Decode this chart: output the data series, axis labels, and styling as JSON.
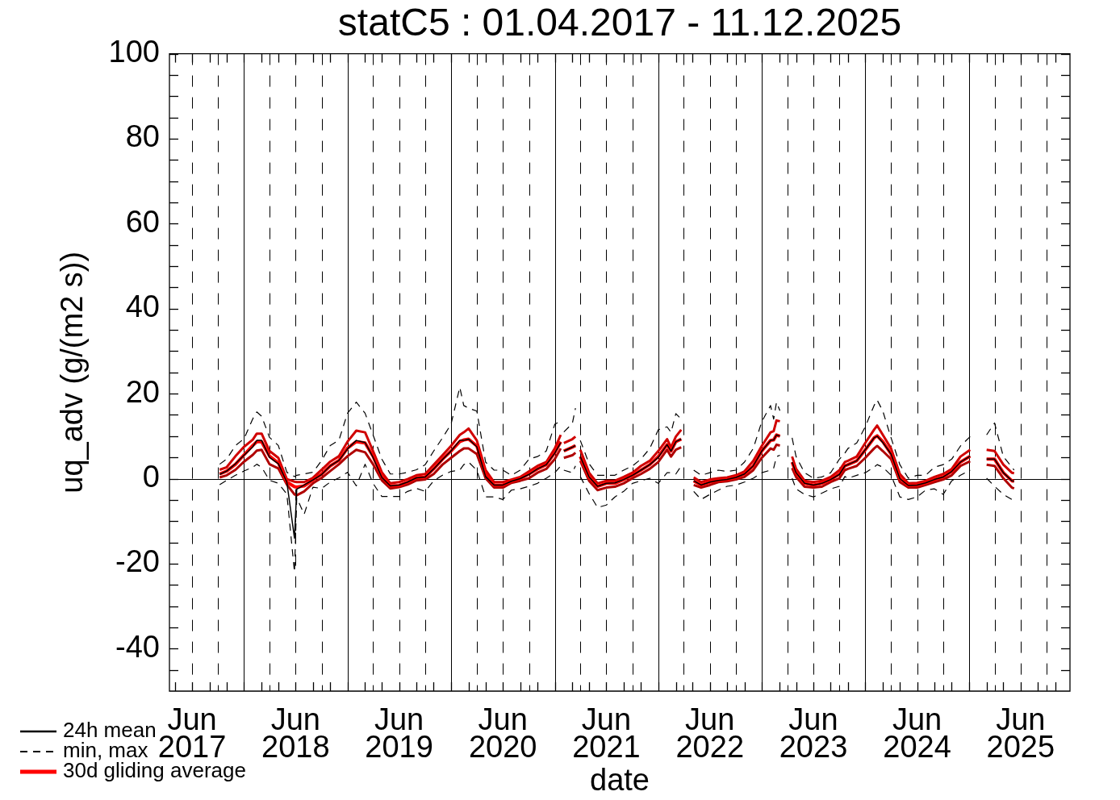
{
  "chart_data": {
    "type": "line",
    "title": "statC5 : 01.04.2017 - 11.12.2025",
    "xlabel": "date",
    "ylabel": "uq_adv (g/(m2 s))",
    "xlim": [
      "2017-03-13",
      "2025-11-22"
    ],
    "ylim": [
      -50,
      100
    ],
    "xticks": [
      {
        "value": "2017-04-01",
        "label": null
      },
      {
        "value": "2017-06-01",
        "label": "Jun\n2017"
      },
      {
        "value": "2017-08-01",
        "label": null
      },
      {
        "value": "2017-10-01",
        "label": null
      },
      {
        "value": "2017-12-01",
        "label": null
      },
      {
        "value": "2018-02-01",
        "label": null
      },
      {
        "value": "2018-04-01",
        "label": null
      },
      {
        "value": "2018-06-01",
        "label": "Jun\n2018"
      },
      {
        "value": "2018-08-01",
        "label": null
      },
      {
        "value": "2018-10-01",
        "label": null
      },
      {
        "value": "2018-12-01",
        "label": null
      },
      {
        "value": "2019-02-01",
        "label": null
      },
      {
        "value": "2019-04-01",
        "label": null
      },
      {
        "value": "2019-06-01",
        "label": "Jun\n2019"
      },
      {
        "value": "2019-08-01",
        "label": null
      },
      {
        "value": "2019-10-01",
        "label": null
      },
      {
        "value": "2019-12-01",
        "label": null
      },
      {
        "value": "2020-02-01",
        "label": null
      },
      {
        "value": "2020-04-01",
        "label": null
      },
      {
        "value": "2020-06-01",
        "label": "Jun\n2020"
      },
      {
        "value": "2020-08-01",
        "label": null
      },
      {
        "value": "2020-10-01",
        "label": null
      },
      {
        "value": "2020-12-01",
        "label": null
      },
      {
        "value": "2021-02-01",
        "label": null
      },
      {
        "value": "2021-04-01",
        "label": null
      },
      {
        "value": "2021-06-01",
        "label": "Jun\n2021"
      },
      {
        "value": "2021-08-01",
        "label": null
      },
      {
        "value": "2021-10-01",
        "label": null
      },
      {
        "value": "2021-12-01",
        "label": null
      },
      {
        "value": "2022-02-01",
        "label": null
      },
      {
        "value": "2022-04-01",
        "label": null
      },
      {
        "value": "2022-06-01",
        "label": "Jun\n2022"
      },
      {
        "value": "2022-08-01",
        "label": null
      },
      {
        "value": "2022-10-01",
        "label": null
      },
      {
        "value": "2022-12-01",
        "label": null
      },
      {
        "value": "2023-02-01",
        "label": null
      },
      {
        "value": "2023-04-01",
        "label": null
      },
      {
        "value": "2023-06-01",
        "label": "Jun\n2023"
      },
      {
        "value": "2023-08-01",
        "label": null
      },
      {
        "value": "2023-10-01",
        "label": null
      },
      {
        "value": "2023-12-01",
        "label": null
      },
      {
        "value": "2024-02-01",
        "label": null
      },
      {
        "value": "2024-04-01",
        "label": null
      },
      {
        "value": "2024-06-01",
        "label": "Jun\n2024"
      },
      {
        "value": "2024-08-01",
        "label": null
      },
      {
        "value": "2024-10-01",
        "label": null
      },
      {
        "value": "2024-12-01",
        "label": null
      },
      {
        "value": "2025-02-01",
        "label": null
      },
      {
        "value": "2025-04-01",
        "label": null
      },
      {
        "value": "2025-06-01",
        "label": "Jun\n2025"
      },
      {
        "value": "2025-08-01",
        "label": null
      },
      {
        "value": "2025-10-01",
        "label": null
      }
    ],
    "yticks": [
      {
        "value": -45,
        "label": null
      },
      -40,
      {
        "value": -35,
        "label": null
      },
      {
        "value": -30,
        "label": null
      },
      {
        "value": -25,
        "label": null
      },
      -20,
      {
        "value": -15,
        "label": null
      },
      {
        "value": -10,
        "label": null
      },
      {
        "value": -5,
        "label": null
      },
      0,
      {
        "value": 5,
        "label": null
      },
      {
        "value": 10,
        "label": null
      },
      {
        "value": 15,
        "label": null
      },
      20,
      {
        "value": 25,
        "label": null
      },
      {
        "value": 30,
        "label": null
      },
      {
        "value": 35,
        "label": null
      },
      40,
      {
        "value": 45,
        "label": null
      },
      {
        "value": 50,
        "label": null
      },
      {
        "value": 55,
        "label": null
      },
      60,
      {
        "value": 65,
        "label": null
      },
      {
        "value": 70,
        "label": null
      },
      {
        "value": 75,
        "label": null
      },
      80,
      {
        "value": 85,
        "label": null
      },
      {
        "value": 90,
        "label": null
      },
      {
        "value": 95,
        "label": null
      },
      100
    ],
    "legend": "bottom left",
    "ref_lines": [
      {
        "axis": "y",
        "value": 0,
        "line_style": "solid"
      },
      {
        "axis": "x",
        "value": "2017-06-01",
        "line_style": "dashed"
      },
      {
        "axis": "x",
        "value": "2017-09-01",
        "line_style": "dashed"
      },
      {
        "axis": "x",
        "value": "2017-12-01",
        "line_style": "solid"
      },
      {
        "axis": "x",
        "value": "2018-03-01",
        "line_style": "dashed"
      },
      {
        "axis": "x",
        "value": "2018-06-01",
        "line_style": "dashed"
      },
      {
        "axis": "x",
        "value": "2018-09-01",
        "line_style": "dashed"
      },
      {
        "axis": "x",
        "value": "2018-12-01",
        "line_style": "solid"
      },
      {
        "axis": "x",
        "value": "2019-03-01",
        "line_style": "dashed"
      },
      {
        "axis": "x",
        "value": "2019-06-01",
        "line_style": "dashed"
      },
      {
        "axis": "x",
        "value": "2019-09-01",
        "line_style": "dashed"
      },
      {
        "axis": "x",
        "value": "2019-12-01",
        "line_style": "solid"
      },
      {
        "axis": "x",
        "value": "2020-03-01",
        "line_style": "dashed"
      },
      {
        "axis": "x",
        "value": "2020-06-01",
        "line_style": "dashed"
      },
      {
        "axis": "x",
        "value": "2020-09-01",
        "line_style": "dashed"
      },
      {
        "axis": "x",
        "value": "2020-12-01",
        "line_style": "solid"
      },
      {
        "axis": "x",
        "value": "2021-03-01",
        "line_style": "dashed"
      },
      {
        "axis": "x",
        "value": "2021-06-01",
        "line_style": "dashed"
      },
      {
        "axis": "x",
        "value": "2021-09-01",
        "line_style": "dashed"
      },
      {
        "axis": "x",
        "value": "2021-12-01",
        "line_style": "solid"
      },
      {
        "axis": "x",
        "value": "2022-03-01",
        "line_style": "dashed"
      },
      {
        "axis": "x",
        "value": "2022-06-01",
        "line_style": "dashed"
      },
      {
        "axis": "x",
        "value": "2022-09-01",
        "line_style": "dashed"
      },
      {
        "axis": "x",
        "value": "2022-12-01",
        "line_style": "solid"
      },
      {
        "axis": "x",
        "value": "2023-03-01",
        "line_style": "dashed"
      },
      {
        "axis": "x",
        "value": "2023-06-01",
        "line_style": "dashed"
      },
      {
        "axis": "x",
        "value": "2023-09-01",
        "line_style": "dashed"
      },
      {
        "axis": "x",
        "value": "2023-12-01",
        "line_style": "solid"
      },
      {
        "axis": "x",
        "value": "2024-03-01",
        "line_style": "dashed"
      },
      {
        "axis": "x",
        "value": "2024-06-01",
        "line_style": "dashed"
      },
      {
        "axis": "x",
        "value": "2024-09-01",
        "line_style": "dashed"
      },
      {
        "axis": "x",
        "value": "2024-12-01",
        "line_style": "solid"
      },
      {
        "axis": "x",
        "value": "2025-03-01",
        "line_style": "dashed"
      },
      {
        "axis": "x",
        "value": "2025-06-01",
        "line_style": "dashed"
      },
      {
        "axis": "x",
        "value": "2025-09-01",
        "line_style": "dashed"
      }
    ],
    "x": [
      "2017-09-06",
      "2017-10-01",
      "2017-11-01",
      "2017-12-01",
      "2018-01-01",
      "2018-01-15",
      "2018-02-01",
      "2018-03-01",
      "2018-04-01",
      "2018-05-01",
      "2018-05-28",
      "2018-06-05",
      "2018-07-01",
      "2018-08-01",
      "2018-09-01",
      "2018-10-01",
      "2018-11-01",
      "2018-12-01",
      "2019-01-01",
      "2019-02-01",
      "2019-03-01",
      "2019-04-01",
      "2019-05-01",
      "2019-06-01",
      "2019-07-01",
      "2019-08-01",
      "2019-09-01",
      "2019-10-01",
      "2019-11-01",
      "2019-12-01",
      "2020-01-01",
      "2020-01-15",
      "2020-02-01",
      "2020-03-01",
      "2020-04-01",
      "2020-05-01",
      "2020-06-01",
      "2020-07-01",
      "2020-08-01",
      "2020-09-01",
      "2020-10-01",
      "2020-11-01",
      "2020-12-01",
      "2020-12-22",
      "2020-12-28",
      "2021-01-02",
      "2021-02-01",
      "2021-02-12",
      "2021-02-20",
      "2021-03-01",
      "2021-04-01",
      "2021-05-01",
      "2021-06-01",
      "2021-07-01",
      "2021-08-01",
      "2021-09-01",
      "2021-10-01",
      "2021-11-01",
      "2021-12-01",
      "2022-01-01",
      "2022-01-15",
      "2022-02-01",
      "2022-02-20",
      "2022-03-10",
      "2022-04-05",
      "2022-05-01",
      "2022-06-01",
      "2022-07-01",
      "2022-08-01",
      "2022-09-01",
      "2022-10-01",
      "2022-11-01",
      "2022-12-01",
      "2023-01-01",
      "2023-01-12",
      "2023-01-22",
      "2023-02-03",
      "2023-02-20",
      "2023-03-18",
      "2023-04-01",
      "2023-05-01",
      "2023-06-01",
      "2023-07-01",
      "2023-08-01",
      "2023-09-01",
      "2023-09-20",
      "2023-10-01",
      "2023-11-01",
      "2023-12-01",
      "2024-01-01",
      "2024-01-12",
      "2024-02-01",
      "2024-03-01",
      "2024-04-01",
      "2024-05-01",
      "2024-06-01",
      "2024-07-01",
      "2024-08-01",
      "2024-09-01",
      "2024-10-01",
      "2024-11-01",
      "2024-12-05",
      "2025-01-01",
      "2025-02-01",
      "2025-03-01",
      "2025-04-01",
      "2025-05-01",
      "2025-05-09"
    ],
    "series": [
      {
        "name": "24h mean",
        "color": "#000000",
        "values": [
          1.0,
          1.8,
          3.5,
          5.5,
          7.5,
          9.0,
          9.0,
          5.0,
          3.5,
          -0.8,
          -14,
          -2.5,
          -1.5,
          -0.3,
          1.0,
          3.0,
          4.3,
          7.0,
          9.0,
          8.5,
          5.0,
          0.3,
          -1.7,
          -1.5,
          -0.8,
          0.2,
          0.4,
          2.3,
          4.5,
          6.5,
          9.0,
          9.0,
          9.3,
          7.5,
          0.5,
          -1.5,
          -1.5,
          -0.6,
          0,
          1.0,
          2.3,
          3.3,
          6.0,
          8.5,
          null,
          6.5,
          7.4,
          7.8,
          null,
          5.2,
          0.4,
          -1.8,
          -1.1,
          -1.0,
          -0.2,
          0.8,
          2.0,
          3.3,
          5.0,
          8.0,
          6.5,
          8.7,
          9.3,
          null,
          -0.5,
          -1.5,
          -0.8,
          -0.4,
          -0.2,
          0.3,
          1.1,
          3.0,
          6.5,
          9.0,
          9.1,
          10.3,
          10.0,
          null,
          3.9,
          1.4,
          -1.1,
          -1.5,
          -1.1,
          -0.2,
          1.0,
          3.0,
          3.3,
          4.2,
          6.8,
          9.6,
          10.0,
          8.5,
          5.8,
          0,
          -1.6,
          -1.5,
          -1.0,
          -0.2,
          0.4,
          1.7,
          3.9,
          5.3,
          null,
          4.6,
          4.6,
          1.4,
          -0.5,
          -0.6
        ]
      },
      {
        "name": "min, max",
        "color": "#000000",
        "line_style": "dashed",
        "values": [
          3.4,
          4.6,
          7.8,
          9.4,
          14.1,
          15.7,
          14.7,
          9.7,
          7.8,
          1.5,
          0.5,
          0.8,
          1.1,
          1.5,
          4.3,
          7.8,
          9.1,
          15.4,
          18.0,
          15.4,
          10.3,
          4.6,
          1.1,
          1.1,
          1.5,
          2.1,
          3.3,
          6.5,
          9.6,
          12.8,
          21.5,
          17.2,
          16.6,
          15.9,
          3.9,
          2.0,
          2.0,
          0.8,
          2.0,
          4.6,
          5.2,
          6.5,
          12.8,
          13.5,
          null,
          11.0,
          13.0,
          16.6,
          null,
          9.0,
          3.5,
          0.8,
          0.8,
          0.8,
          2.0,
          3.0,
          4.6,
          7.1,
          11.5,
          12.2,
          10.9,
          15.3,
          14.0,
          null,
          2.0,
          0.8,
          1.4,
          2.0,
          1.7,
          2.0,
          3.9,
          7.1,
          13.4,
          17.2,
          14.0,
          18.0,
          16.0,
          null,
          9.6,
          5.2,
          1.4,
          0.1,
          0.4,
          1.4,
          4.6,
          6.0,
          7.1,
          8.4,
          12.2,
          17.2,
          18.5,
          15.9,
          9.6,
          3.3,
          0.1,
          0.8,
          0.8,
          2.7,
          3.3,
          4.6,
          7.7,
          9.9,
          null,
          10.3,
          13.1,
          5.2,
          2.7,
          2.0
        ]
      },
      {
        "color": "#000000",
        "line_style": "dashed",
        "values": [
          -1.4,
          -0.4,
          0.8,
          1.8,
          2.7,
          3.4,
          2.7,
          -0.4,
          -1.1,
          -3.6,
          -22,
          -4.5,
          -8.4,
          -2.0,
          -2.3,
          -0.8,
          0.2,
          1.5,
          -1.7,
          3.4,
          -1.1,
          -4.2,
          -4.2,
          -4.2,
          -3.0,
          -2.3,
          -3.0,
          -0.5,
          0.8,
          1.7,
          2.0,
          3.3,
          3.9,
          2.0,
          -4.3,
          -4.3,
          -4.9,
          -2.7,
          -2.4,
          -1.8,
          -1.1,
          0.1,
          1.4,
          3.0,
          null,
          2.0,
          1.4,
          3.0,
          null,
          0.5,
          -3.5,
          -6.8,
          -6.2,
          -4.3,
          -3.0,
          -1.1,
          -0.5,
          0.1,
          -1.1,
          1.4,
          1.4,
          1.1,
          3.0,
          null,
          -3.0,
          -4.9,
          -3.7,
          -2.7,
          -1.8,
          -1.5,
          -0.8,
          0.1,
          1.4,
          2.0,
          2.5,
          5.2,
          5.5,
          null,
          0.1,
          -2.4,
          -3.7,
          -4.3,
          -3.4,
          -2.4,
          -1.8,
          0.5,
          0.1,
          0.8,
          1.4,
          2.7,
          3.3,
          2.7,
          0.8,
          -4.3,
          -4.9,
          -4.3,
          -2.7,
          -2.4,
          -3.7,
          -0.5,
          0.8,
          2.0,
          null,
          0.1,
          -1.8,
          -3.7,
          -4.9,
          -4.0
        ]
      },
      {
        "name": "30d gliding average",
        "color": "#ff0000",
        "values": [
          1.1,
          1.8,
          3.4,
          5.6,
          7.8,
          8.7,
          8.7,
          5.3,
          3.7,
          -0.8,
          -1.9,
          -2.0,
          -1.7,
          -0.3,
          1.1,
          3.0,
          4.3,
          7.2,
          8.7,
          8.4,
          5.3,
          0.5,
          -1.7,
          -1.6,
          -0.8,
          0.2,
          0.4,
          2.3,
          4.6,
          6.5,
          8.7,
          9.1,
          9.3,
          7.7,
          1.1,
          -1.5,
          -1.5,
          -0.6,
          0,
          1.1,
          2.3,
          3.3,
          6.1,
          8.7,
          null,
          6.5,
          7.4,
          7.8,
          null,
          5.2,
          0.4,
          -1.8,
          -1.1,
          -1.1,
          -0.2,
          0.8,
          2.0,
          3.3,
          5.2,
          8.0,
          6.5,
          8.7,
          9.3,
          null,
          -0.5,
          -1.5,
          -0.8,
          -0.4,
          -0.2,
          0.3,
          1.1,
          3.0,
          6.5,
          9.0,
          9.1,
          10.3,
          10.0,
          null,
          3.9,
          1.4,
          -1.1,
          -1.5,
          -1.1,
          -0.2,
          1.1,
          3.0,
          3.3,
          4.2,
          6.8,
          9.6,
          10.1,
          8.7,
          5.8,
          0.1,
          -1.6,
          -1.5,
          -1.0,
          -0.2,
          0.4,
          1.7,
          3.9,
          5.3,
          null,
          4.6,
          4.6,
          1.4,
          -0.5,
          -0.6
        ]
      },
      {
        "color": "#d00000",
        "values": [
          2.1,
          2.7,
          5.3,
          7.5,
          9.2,
          10.6,
          10.6,
          6.5,
          4.9,
          -0.1,
          -0.7,
          -0.8,
          -0.8,
          0.2,
          2.1,
          4.0,
          5.3,
          8.7,
          11.3,
          10.9,
          6.5,
          1.5,
          -1.1,
          -0.8,
          -0.1,
          0.8,
          1.1,
          3.3,
          5.5,
          7.7,
          10.3,
          10.9,
          11.8,
          9.0,
          2.0,
          -0.8,
          -0.8,
          -0.2,
          0.4,
          1.7,
          3.0,
          3.9,
          7.1,
          10.3,
          null,
          8.4,
          9.3,
          9.9,
          null,
          6.8,
          1.4,
          -1.1,
          -0.5,
          -0.5,
          0.4,
          1.4,
          3.0,
          4.2,
          6.5,
          9.3,
          7.4,
          9.9,
          11.5,
          null,
          0.3,
          -0.8,
          -0.2,
          0.1,
          0.3,
          0.8,
          1.7,
          4.2,
          7.7,
          10.9,
          11.2,
          13.7,
          13.5,
          null,
          5.2,
          2.3,
          -0.5,
          -0.8,
          -0.5,
          0.4,
          2.0,
          3.9,
          4.2,
          5.2,
          8.4,
          11.5,
          12.5,
          10.3,
          7.1,
          1.1,
          -1.1,
          -1.0,
          -0.5,
          0.4,
          1.1,
          2.3,
          5.2,
          6.8,
          null,
          6.8,
          6.5,
          3.3,
          1.4,
          1.3
        ]
      },
      {
        "color": "#b00000",
        "values": [
          0.3,
          0.8,
          2.1,
          4.0,
          5.6,
          6.6,
          6.8,
          3.4,
          2.4,
          -1.4,
          -3.7,
          -3.9,
          -3.0,
          -1.1,
          0.2,
          1.8,
          3.4,
          5.3,
          6.8,
          6.2,
          3.4,
          -0.4,
          -2.3,
          -2.0,
          -1.4,
          -0.4,
          -0.2,
          1.1,
          3.3,
          4.9,
          6.5,
          7.1,
          7.1,
          5.8,
          0.1,
          -2.1,
          -2.1,
          -1.0,
          -0.5,
          0.1,
          1.4,
          2.3,
          4.6,
          7.1,
          null,
          4.9,
          5.5,
          6.1,
          null,
          4.2,
          -0.5,
          -2.7,
          -2.1,
          -1.9,
          -1.1,
          0.1,
          1.1,
          2.3,
          3.9,
          6.8,
          5.2,
          6.8,
          7.4,
          null,
          -1.5,
          -2.1,
          -1.5,
          -0.8,
          -0.6,
          -0.2,
          0.4,
          2.0,
          4.9,
          7.1,
          6.8,
          8.0,
          7.8,
          null,
          2.5,
          0.4,
          -1.9,
          -2.1,
          -1.9,
          -0.8,
          0.1,
          2.0,
          2.3,
          3.0,
          4.9,
          7.1,
          7.7,
          6.5,
          4.6,
          -0.8,
          -2.1,
          -2.1,
          -1.5,
          -0.8,
          -0.2,
          0.8,
          3.0,
          4.1,
          null,
          3.3,
          3.0,
          0.1,
          -2.1,
          -2.3
        ]
      }
    ]
  }
}
